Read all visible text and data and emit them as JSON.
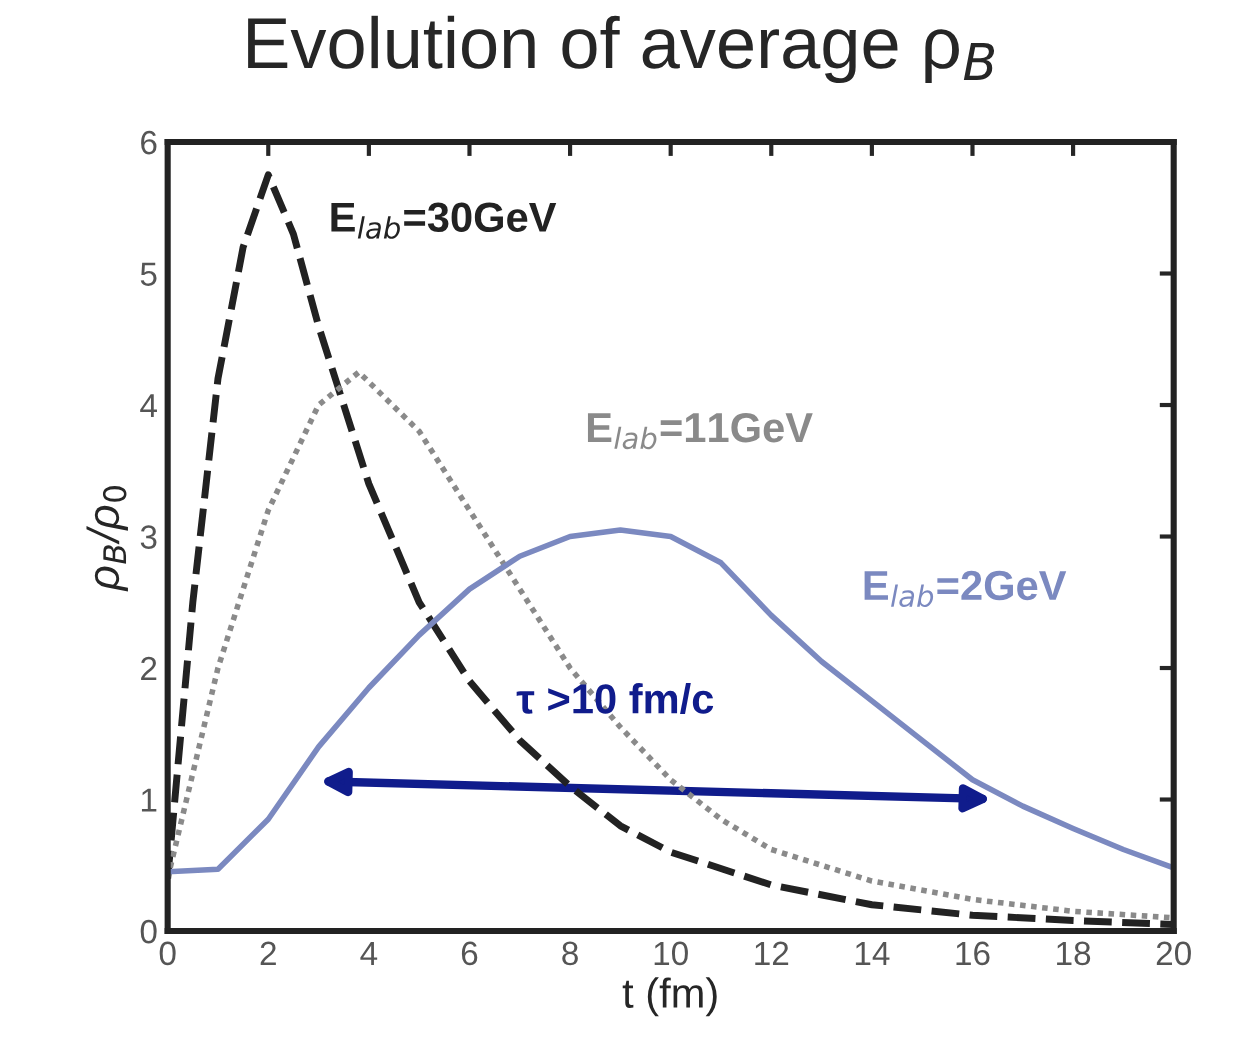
{
  "chart_data": {
    "type": "line",
    "title": "Evolution of average ρ$_{B}$",
    "xlabel": "t (fm)",
    "ylabel": "ρ$_{B}$/ρ$_{0}$",
    "xlim": [
      0,
      20
    ],
    "ylim": [
      0,
      6
    ],
    "xticks": [
      0,
      2,
      4,
      6,
      8,
      10,
      12,
      14,
      16,
      18,
      20
    ],
    "yticks": [
      0,
      1,
      2,
      3,
      4,
      5,
      6
    ],
    "grid": false,
    "marker": "none",
    "series": [
      {
        "name": "E$_{lab}$=30GeV",
        "color": "#222222",
        "line_style": "dashed",
        "x": [
          0,
          0.5,
          1,
          1.5,
          2,
          2.5,
          3,
          3.5,
          4,
          5,
          6,
          7,
          8,
          9,
          10,
          12,
          14,
          16,
          18,
          20
        ],
        "values": [
          0.4,
          2.5,
          4.2,
          5.2,
          5.75,
          5.3,
          4.6,
          4.0,
          3.4,
          2.5,
          1.9,
          1.45,
          1.1,
          0.8,
          0.6,
          0.35,
          0.2,
          0.12,
          0.08,
          0.05
        ]
      },
      {
        "name": "E$_{lab}$=11GeV",
        "color": "#8a8a8a",
        "line_style": "dotted",
        "x": [
          0,
          1,
          2,
          3,
          3.8,
          5,
          6,
          7,
          8,
          9,
          10,
          11,
          12,
          14,
          16,
          18,
          20
        ],
        "values": [
          0.4,
          2.0,
          3.2,
          4.0,
          4.25,
          3.8,
          3.2,
          2.6,
          2.0,
          1.55,
          1.15,
          0.85,
          0.62,
          0.38,
          0.24,
          0.15,
          0.1
        ]
      },
      {
        "name": "E$_{lab}$=2GeV",
        "color": "#7b89c0",
        "line_style": "solid",
        "x": [
          0,
          1,
          2,
          3,
          4,
          5,
          6,
          7,
          8,
          9,
          10,
          11,
          12,
          13,
          14,
          15,
          16,
          17,
          18,
          19,
          20
        ],
        "values": [
          0.45,
          0.47,
          0.85,
          1.4,
          1.85,
          2.25,
          2.6,
          2.85,
          3.0,
          3.05,
          3.0,
          2.8,
          2.4,
          2.05,
          1.75,
          1.45,
          1.15,
          0.95,
          0.78,
          0.62,
          0.48
        ]
      }
    ],
    "annotations": [
      "τ >10 fm/c"
    ]
  }
}
